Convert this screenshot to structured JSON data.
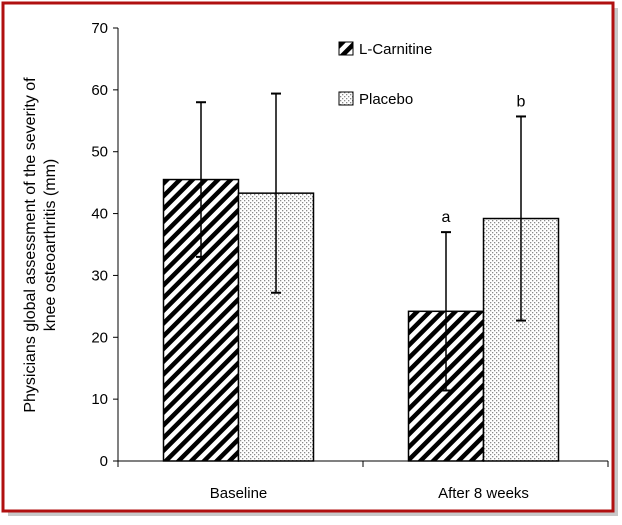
{
  "chart_data": {
    "type": "bar",
    "categories": [
      "Baseline",
      "After 8 weeks"
    ],
    "series": [
      {
        "name": "L-Carnitine",
        "values": [
          45.5,
          24.2
        ],
        "error": [
          12.5,
          12.8
        ],
        "pattern": "diagonal-hatch",
        "annotations": [
          "",
          "a"
        ]
      },
      {
        "name": "Placebo",
        "values": [
          43.3,
          39.2
        ],
        "error": [
          16.1,
          16.5
        ],
        "pattern": "dotted",
        "annotations": [
          "",
          "b"
        ]
      }
    ],
    "ylabel_lines": [
      "Physicians global assessment of the severity of",
      "knee osteoarthritis (mm)"
    ],
    "ylim": [
      0,
      70
    ],
    "yticks": [
      0,
      10,
      20,
      30,
      40,
      50,
      60,
      70
    ],
    "grid": false,
    "legend_position": "top-center"
  },
  "colors": {
    "frame_border": "#b01010",
    "bar_outline": "#000000",
    "dot_fill": "#8a8a8a"
  }
}
